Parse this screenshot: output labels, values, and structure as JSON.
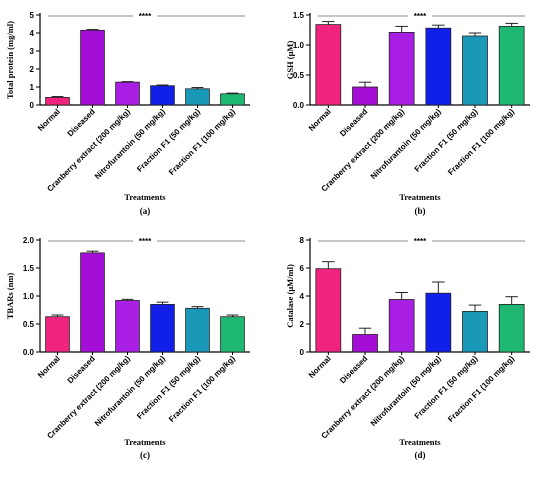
{
  "chart_data": [
    {
      "type": "bar",
      "panel_label": "(a)",
      "xlabel": "Treatments",
      "ylabel": "Total protein (mg/ml)",
      "ylim": [
        0,
        5
      ],
      "yticks": [
        0,
        1,
        2,
        3,
        4,
        5
      ],
      "significance": "****",
      "categories": [
        "Normal",
        "Diseased",
        "Cranberry extract (200 mg/kg)",
        "Nitrofurantoin (50 mg/kg)",
        "Fraction F1 (50 mg/kg)",
        "Fraction F1 (100 mg/kg)"
      ],
      "values": [
        0.42,
        4.15,
        1.27,
        1.07,
        0.9,
        0.62
      ],
      "errors": [
        0.05,
        0.04,
        0.03,
        0.04,
        0.07,
        0.04
      ],
      "colors": [
        "#f0237e",
        "#a40ed6",
        "#a91ee3",
        "#1020e8",
        "#1a98b8",
        "#1fb872"
      ]
    },
    {
      "type": "bar",
      "panel_label": "(b)",
      "xlabel": "Treatments",
      "ylabel": "GSH (μM)",
      "ylim": [
        0,
        1.5
      ],
      "yticks": [
        0,
        0.5,
        1.0,
        1.5
      ],
      "significance": "****",
      "categories": [
        "Normal",
        "Diseased",
        "Cranberry extract (200 mg/kg)",
        "Nitrofurantoin (50 mg/kg)",
        "Fraction F1 (50 mg/kg)",
        "Fraction F1 (100 mg/kg)"
      ],
      "values": [
        1.34,
        0.3,
        1.21,
        1.28,
        1.15,
        1.31
      ],
      "errors": [
        0.05,
        0.08,
        0.1,
        0.05,
        0.05,
        0.05
      ],
      "colors": [
        "#f0237e",
        "#a40ed6",
        "#a91ee3",
        "#1020e8",
        "#1a98b8",
        "#1fb872"
      ]
    },
    {
      "type": "bar",
      "panel_label": "(c)",
      "xlabel": "Treatments",
      "ylabel": "TBARs (nm)",
      "ylim": [
        0,
        2.0
      ],
      "yticks": [
        0,
        0.5,
        1.0,
        1.5,
        2.0
      ],
      "significance": "****",
      "categories": [
        "Normal",
        "Diseased",
        "Cranberry extract (200 mg/kg)",
        "Nitrofurantoin (50 mg/kg)",
        "Fraction F1 (50 mg/kg)",
        "Fraction F1 (100 mg/kg)"
      ],
      "values": [
        0.63,
        1.77,
        0.92,
        0.85,
        0.78,
        0.63
      ],
      "errors": [
        0.03,
        0.03,
        0.02,
        0.04,
        0.03,
        0.03
      ],
      "colors": [
        "#f0237e",
        "#a40ed6",
        "#a91ee3",
        "#1020e8",
        "#1a98b8",
        "#1fb872"
      ]
    },
    {
      "type": "bar",
      "panel_label": "(d)",
      "xlabel": "Treatments",
      "ylabel": "Catalase (μM/ml)",
      "ylim": [
        0,
        8
      ],
      "yticks": [
        0,
        2,
        4,
        6,
        8
      ],
      "significance": "****",
      "categories": [
        "Normal",
        "Diseased",
        "Cranberry extract (200 mg/kg)",
        "Nitrofurantoin (50 mg/kg)",
        "Fraction F1 (50 mg/kg)",
        "Fraction F1 (100 mg/kg)"
      ],
      "values": [
        5.95,
        1.25,
        3.75,
        4.2,
        2.9,
        3.4
      ],
      "errors": [
        0.5,
        0.45,
        0.5,
        0.8,
        0.45,
        0.55
      ],
      "colors": [
        "#f0237e",
        "#a40ed6",
        "#a91ee3",
        "#1020e8",
        "#1a98b8",
        "#1fb872"
      ]
    }
  ]
}
